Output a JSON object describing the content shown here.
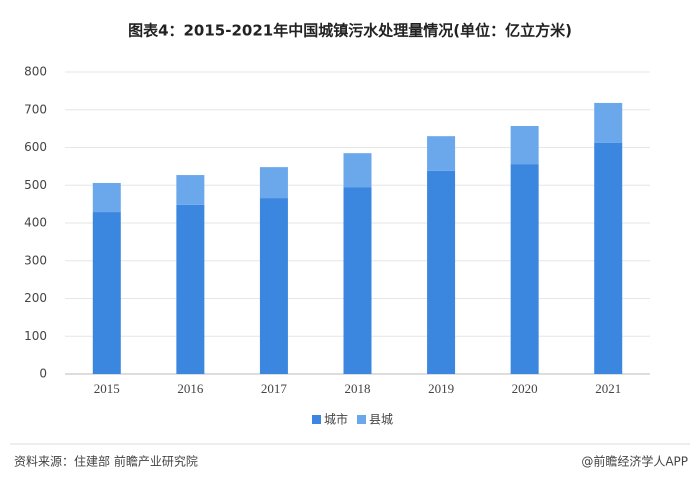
{
  "chart_data": {
    "type": "stacked_bar",
    "title": "图表4：2015-2021年中国城镇污水处理量情况(单位：亿立方米)",
    "categories": [
      "2015",
      "2016",
      "2017",
      "2018",
      "2019",
      "2020",
      "2021"
    ],
    "series": [
      {
        "name": "城市",
        "color": "#3b87e0",
        "values": [
          429,
          448,
          466,
          495,
          538,
          556,
          612
        ]
      },
      {
        "name": "县城",
        "color": "#6ba8eb",
        "values": [
          77,
          79,
          82,
          90,
          92,
          101,
          106
        ]
      }
    ],
    "ylim": [
      0,
      800
    ],
    "yticks": [
      0,
      100,
      200,
      300,
      400,
      500,
      600,
      700,
      800
    ],
    "grid": true,
    "source": "资料来源：住建部 前瞻产业研究院",
    "credit": "@前瞻经济学人APP"
  }
}
